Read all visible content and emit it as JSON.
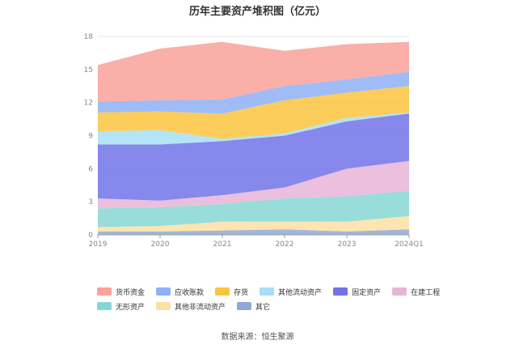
{
  "source": "数据来源：恒生聚源",
  "chart_data": {
    "type": "area",
    "stacked": true,
    "title": "历年主要资产堆积图（亿元）",
    "xlabel": "",
    "ylabel": "",
    "categories": [
      "2019",
      "2020",
      "2021",
      "2022",
      "2023",
      "2024Q1"
    ],
    "yticks": [
      "0",
      "3",
      "6",
      "9",
      "12",
      "15",
      "18"
    ],
    "ylim": [
      0,
      18
    ],
    "grid": "horizontal",
    "legend_position": "bottom",
    "stack_order_bottom_to_top": [
      "其它",
      "其他非流动资产",
      "无形资产",
      "在建工程",
      "固定资产",
      "其他流动资产",
      "存货",
      "应收账款",
      "货币资金"
    ],
    "series": [
      {
        "name": "货币资金",
        "color": "#f9a19a",
        "values": [
          3.3,
          4.7,
          5.2,
          3.2,
          3.2,
          2.7
        ]
      },
      {
        "name": "应收账款",
        "color": "#8fb0f6",
        "values": [
          1.0,
          1.0,
          1.3,
          1.3,
          1.2,
          1.3
        ]
      },
      {
        "name": "存货",
        "color": "#fbc43e",
        "values": [
          1.7,
          1.7,
          2.3,
          3.0,
          2.3,
          2.4
        ]
      },
      {
        "name": "其他流动资产",
        "color": "#a7dff7",
        "values": [
          1.2,
          1.3,
          0.2,
          0.2,
          0.3,
          0.1
        ]
      },
      {
        "name": "固定资产",
        "color": "#7173e8",
        "values": [
          4.9,
          5.1,
          4.9,
          4.7,
          4.3,
          4.3
        ]
      },
      {
        "name": "在建工程",
        "color": "#e8b4d8",
        "values": [
          0.9,
          0.6,
          0.8,
          1.0,
          2.5,
          2.7
        ]
      },
      {
        "name": "无形资产",
        "color": "#86d7d4",
        "values": [
          1.7,
          1.7,
          1.6,
          2.1,
          2.3,
          2.3
        ]
      },
      {
        "name": "其他非流动资产",
        "color": "#fde0a5",
        "values": [
          0.4,
          0.5,
          0.8,
          0.7,
          0.9,
          1.2
        ]
      },
      {
        "name": "其它",
        "color": "#8fa9d6",
        "values": [
          0.3,
          0.3,
          0.4,
          0.5,
          0.3,
          0.5
        ]
      }
    ]
  }
}
